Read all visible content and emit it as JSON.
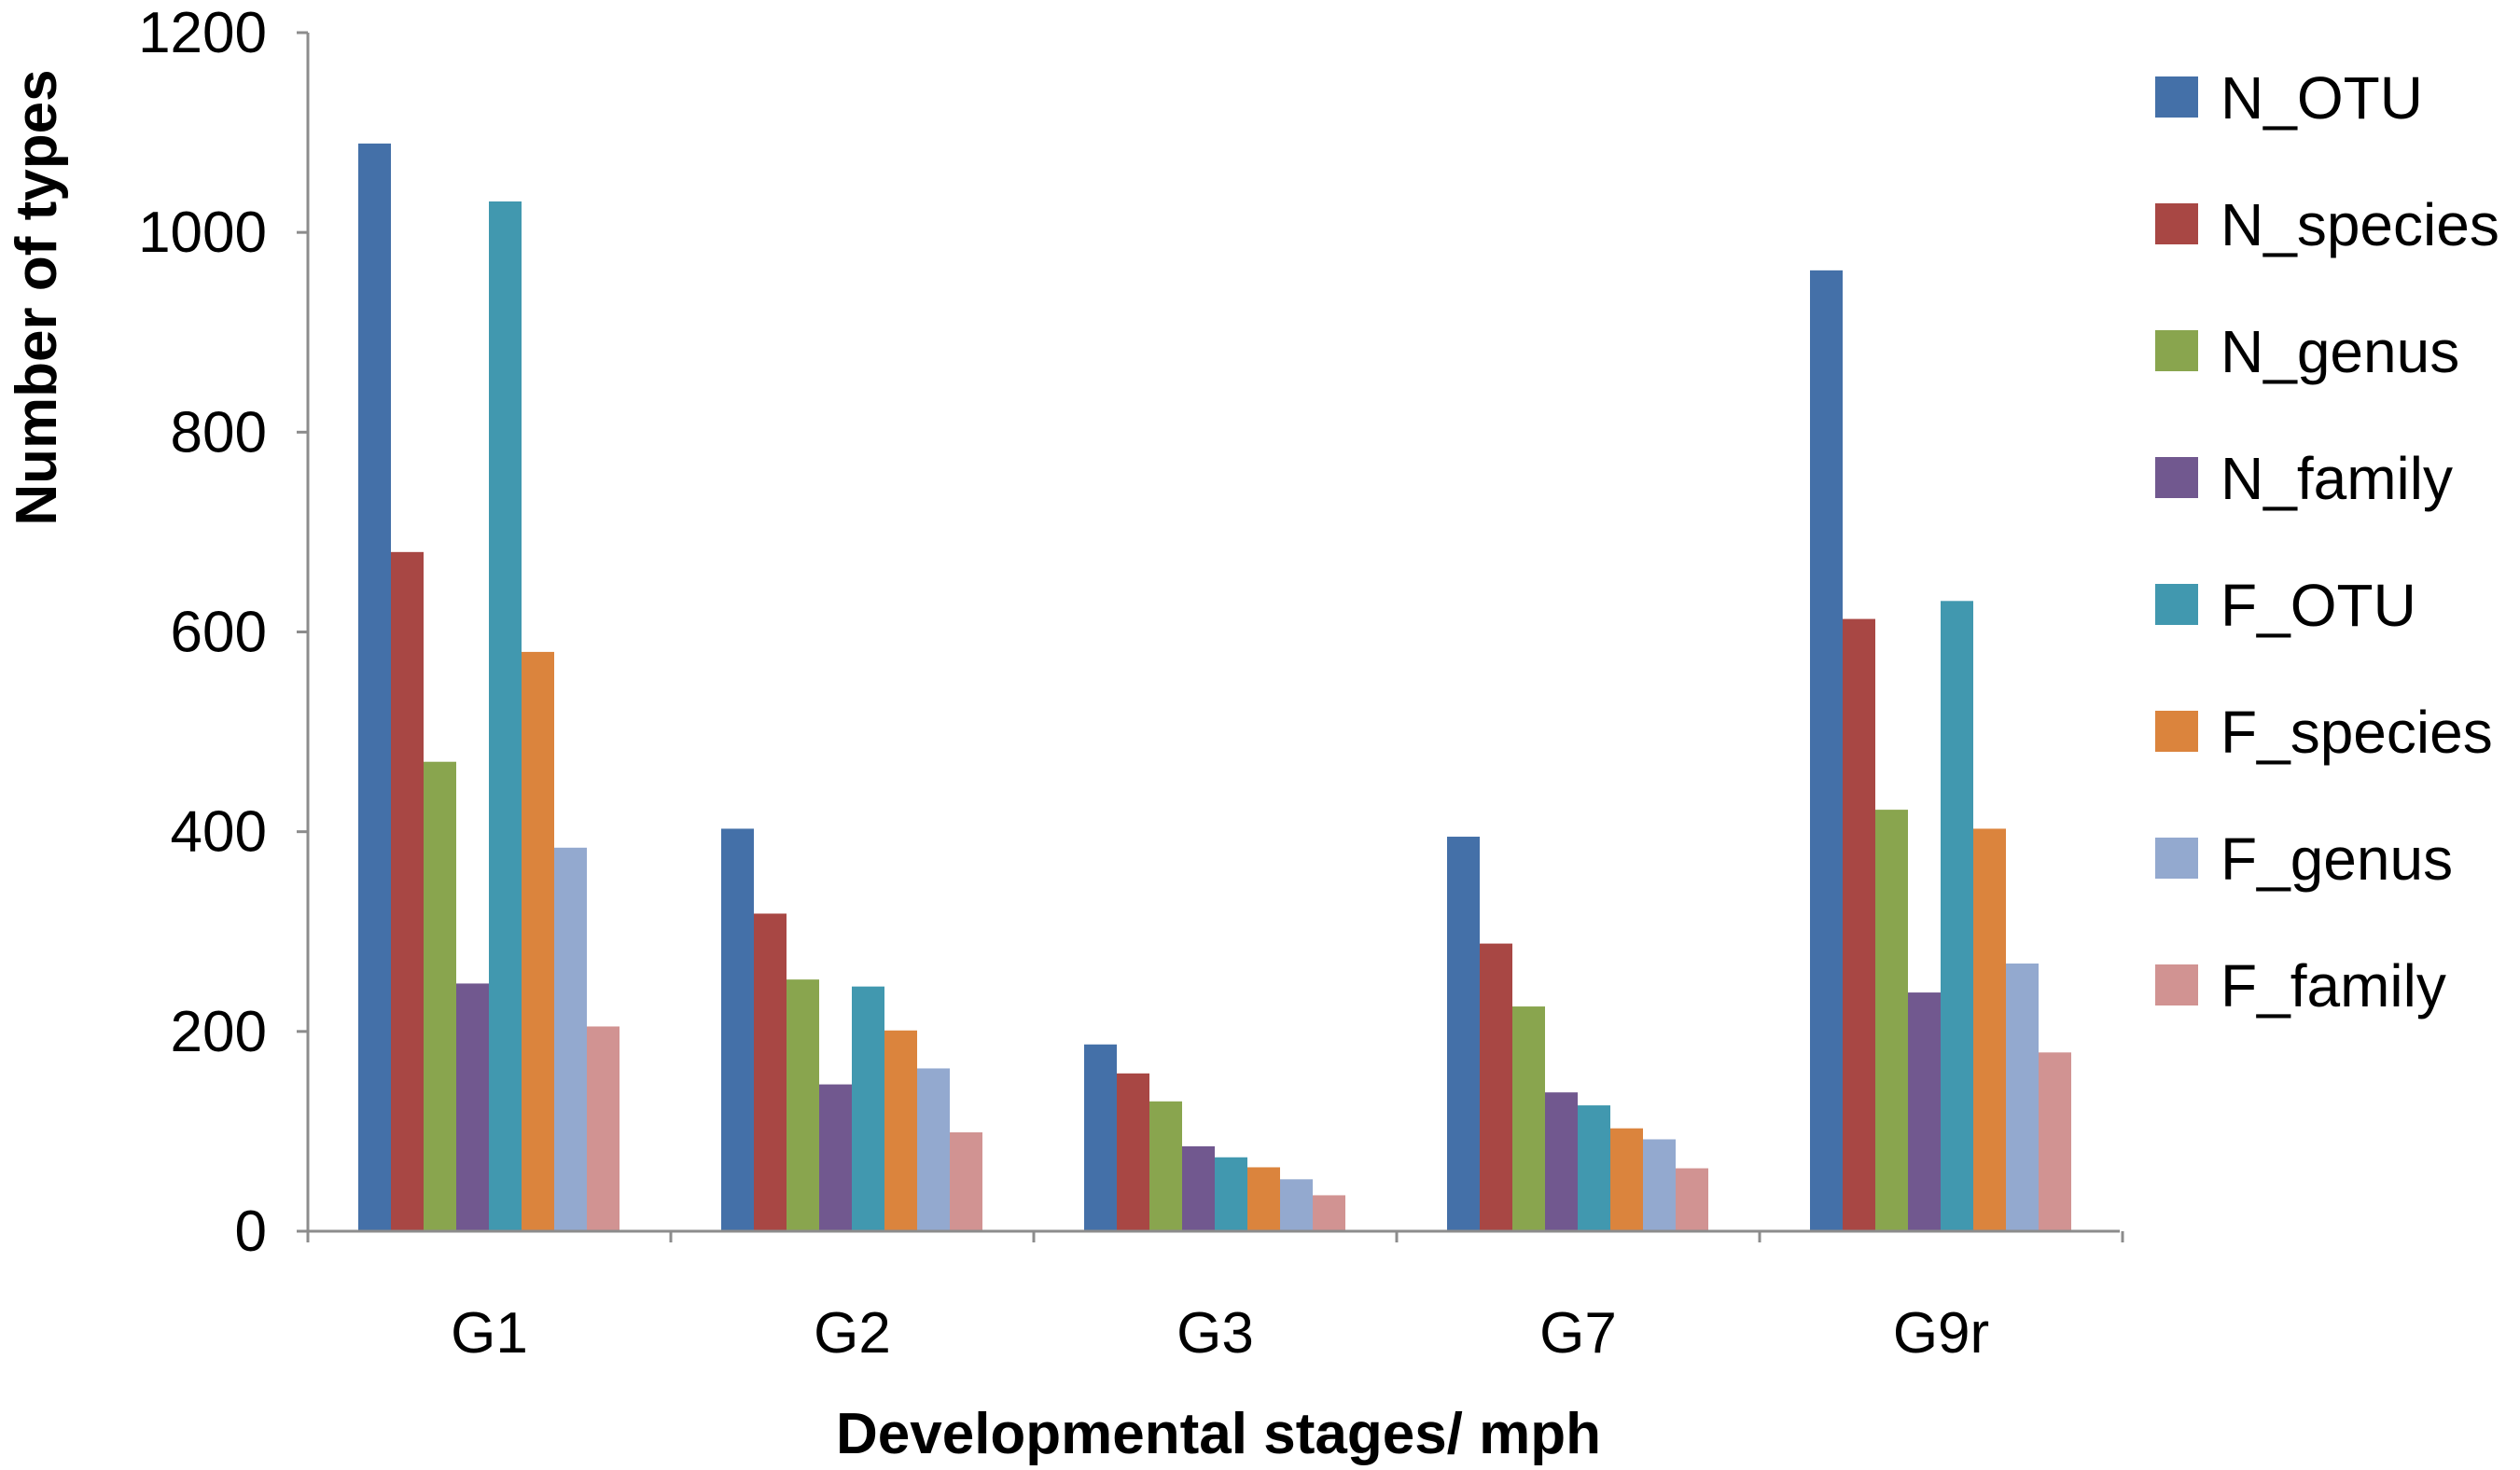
{
  "chart_data": {
    "type": "bar",
    "title": "",
    "xlabel": "Developmental stages/ mph",
    "ylabel": "Number of types",
    "ylim": [
      0,
      1200
    ],
    "yticks": [
      0,
      200,
      400,
      600,
      800,
      1000,
      1200
    ],
    "grid": false,
    "legend_position": "right",
    "categories": [
      "G1",
      "G2",
      "G3",
      "G7",
      "G9r"
    ],
    "series": [
      {
        "name": "N_OTU",
        "color": "#4470A8",
        "values": [
          1089,
          403,
          187,
          395,
          962
        ]
      },
      {
        "name": "N_species",
        "color": "#A84744",
        "values": [
          680,
          318,
          158,
          288,
          613
        ]
      },
      {
        "name": "N_genus",
        "color": "#89A54E",
        "values": [
          470,
          252,
          130,
          225,
          422
        ]
      },
      {
        "name": "N_family",
        "color": "#71588F",
        "values": [
          248,
          147,
          85,
          139,
          239
        ]
      },
      {
        "name": "F_OTU",
        "color": "#4198AF",
        "values": [
          1031,
          245,
          74,
          126,
          631
        ]
      },
      {
        "name": "F_species",
        "color": "#DB843D",
        "values": [
          580,
          201,
          64,
          103,
          403
        ]
      },
      {
        "name": "F_genus",
        "color": "#93A9CF",
        "values": [
          384,
          163,
          52,
          92,
          268
        ]
      },
      {
        "name": "F_family",
        "color": "#D19392",
        "values": [
          205,
          99,
          36,
          63,
          179
        ]
      }
    ]
  }
}
